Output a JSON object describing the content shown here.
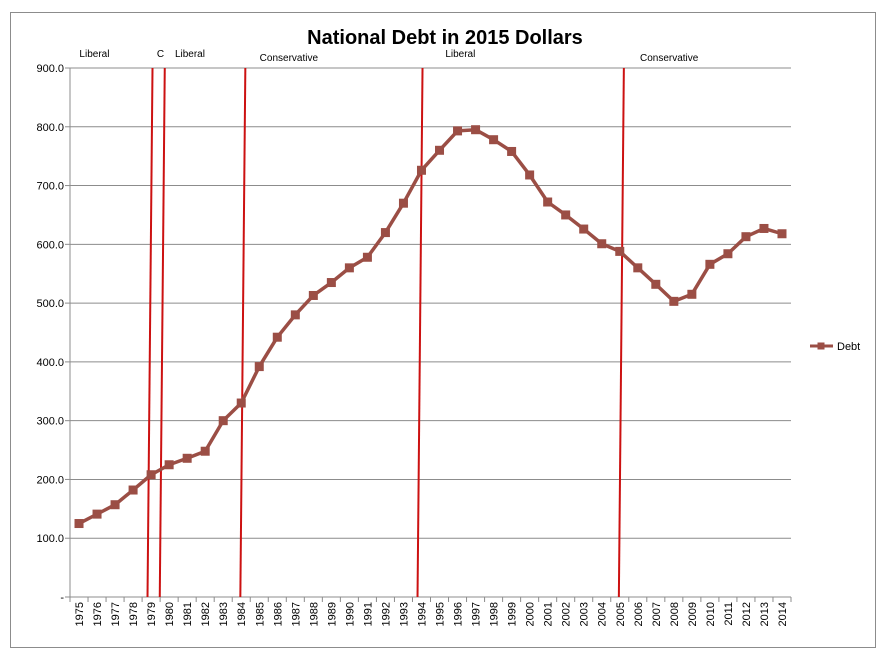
{
  "chart_data": {
    "type": "line",
    "title": "National Debt in 2015 Dollars",
    "xlabel": "",
    "ylabel": "",
    "ylim": [
      0,
      900
    ],
    "y_ticks": [
      "-",
      "100.0",
      "200.0",
      "300.0",
      "400.0",
      "500.0",
      "600.0",
      "700.0",
      "800.0",
      "900.0"
    ],
    "grid": true,
    "legend_position": "right",
    "categories": [
      "1975",
      "1976",
      "1977",
      "1978",
      "1979",
      "1980",
      "1981",
      "1982",
      "1983",
      "1984",
      "1985",
      "1986",
      "1987",
      "1988",
      "1989",
      "1990",
      "1991",
      "1992",
      "1993",
      "1994",
      "1995",
      "1996",
      "1997",
      "1998",
      "1999",
      "2000",
      "2001",
      "2002",
      "2003",
      "2004",
      "2005",
      "2006",
      "2007",
      "2008",
      "2009",
      "2010",
      "2011",
      "2012",
      "2013",
      "2014"
    ],
    "series": [
      {
        "name": "Debt",
        "color": "#9b4e45",
        "values": [
          125,
          141,
          157,
          182,
          208,
          225,
          236,
          248,
          300,
          330,
          392,
          442,
          480,
          513,
          535,
          560,
          578,
          620,
          670,
          726,
          760,
          793,
          795,
          778,
          758,
          718,
          672,
          650,
          626,
          601,
          588,
          560,
          532,
          503,
          515,
          566,
          584,
          613,
          627,
          618
        ]
      }
    ],
    "vertical_markers": [
      {
        "x": 4.3,
        "color": "#cc1111"
      },
      {
        "x": 4.98,
        "color": "#cc1111"
      },
      {
        "x": 9.45,
        "color": "#cc1111"
      },
      {
        "x": 19.28,
        "color": "#cc1111"
      },
      {
        "x": 30.45,
        "color": "#cc1111"
      }
    ],
    "annotations": [
      {
        "text": "Liberal",
        "x": 0.3
      },
      {
        "text": "C",
        "x": 4.6
      },
      {
        "text": "Liberal",
        "x": 5.6
      },
      {
        "text": "Conservative",
        "x": 10.3
      },
      {
        "text": "Liberal",
        "x": 20.6
      },
      {
        "text": "Conservative",
        "x": 31.4
      }
    ]
  }
}
